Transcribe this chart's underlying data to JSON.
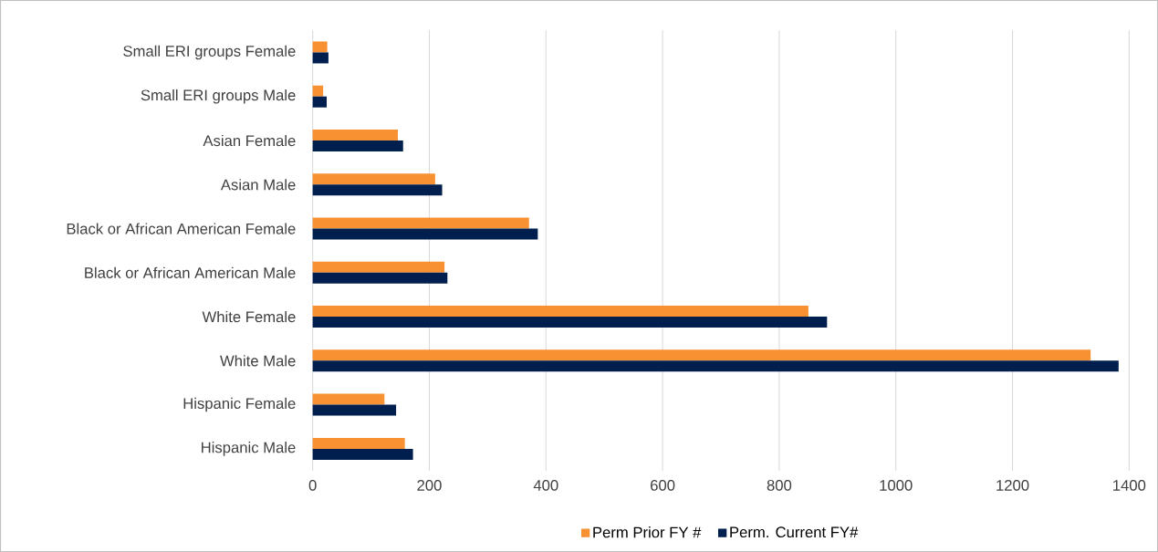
{
  "chart_data": {
    "type": "bar",
    "orientation": "horizontal",
    "categories": [
      "Small ERI groups Female",
      "Small ERI groups Male",
      "Asian Female",
      "Asian Male",
      "Black or African American Female",
      "Black or African American Male",
      "White Female",
      "White Male",
      "Hispanic Female",
      "Hispanic Male"
    ],
    "series": [
      {
        "name": "Perm Prior FY #",
        "color": "#f79132",
        "values": [
          25,
          18,
          146,
          210,
          371,
          226,
          850,
          1334,
          123,
          158
        ]
      },
      {
        "name": "Perm. Current FY#",
        "color": "#001f4e",
        "values": [
          27,
          24,
          155,
          222,
          386,
          231,
          882,
          1382,
          143,
          172
        ]
      }
    ],
    "xlim": [
      0,
      1400
    ],
    "xticks": [
      0,
      200,
      400,
      600,
      800,
      1000,
      1200,
      1400
    ],
    "grid": "x",
    "legend": "bottom"
  }
}
